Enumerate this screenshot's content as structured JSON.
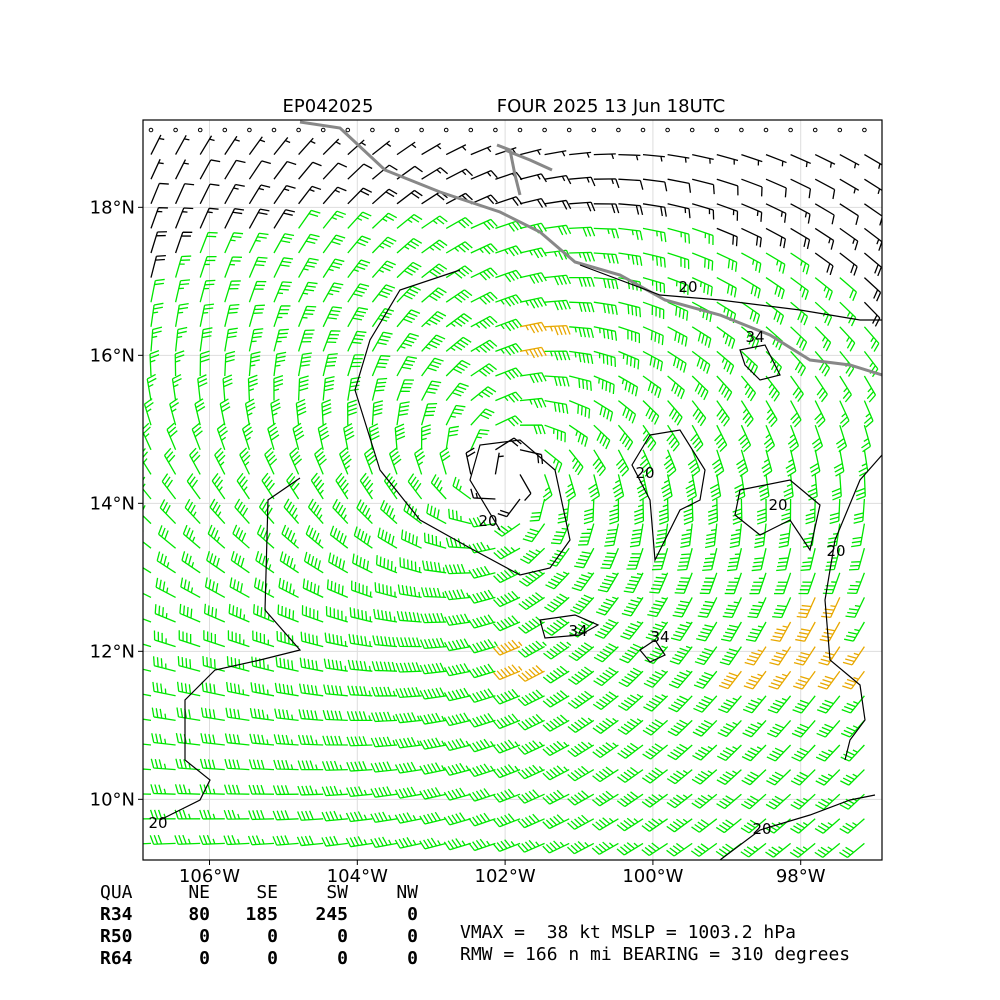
{
  "header": {
    "storm_id": "EP042025",
    "title": "FOUR 2025 13 Jun 18UTC"
  },
  "map": {
    "xlim": [
      -106.9,
      -96.9
    ],
    "ylim": [
      9.18,
      19.18
    ],
    "xticks": [
      {
        "value": -106,
        "label": "106°W"
      },
      {
        "value": -104,
        "label": "104°W"
      },
      {
        "value": -102,
        "label": "102°W"
      },
      {
        "value": -100,
        "label": "100°W"
      },
      {
        "value": -98,
        "label": "98°W"
      }
    ],
    "yticks": [
      {
        "value": 10,
        "label": "10°N"
      },
      {
        "value": 12,
        "label": "12°N"
      },
      {
        "value": 14,
        "label": "14°N"
      },
      {
        "value": 16,
        "label": "16°N"
      },
      {
        "value": 18,
        "label": "18°N"
      }
    ],
    "contour_labels": [
      "20",
      "34",
      "20",
      "20",
      "20",
      "34",
      "34",
      "20",
      "20",
      "20"
    ]
  },
  "table": {
    "header": [
      "QUA",
      "NE",
      "SE",
      "SW",
      "NW"
    ],
    "rows": [
      [
        "R34",
        80,
        185,
        245,
        0
      ],
      [
        "R50",
        0,
        0,
        0,
        0
      ],
      [
        "R64",
        0,
        0,
        0,
        0
      ]
    ]
  },
  "stats": {
    "vmax_line": "VMAX =  38 kt MSLP = 1003.2 hPa",
    "rmw_line": "RMW = 166 n mi BEARING = 310 degrees"
  }
}
